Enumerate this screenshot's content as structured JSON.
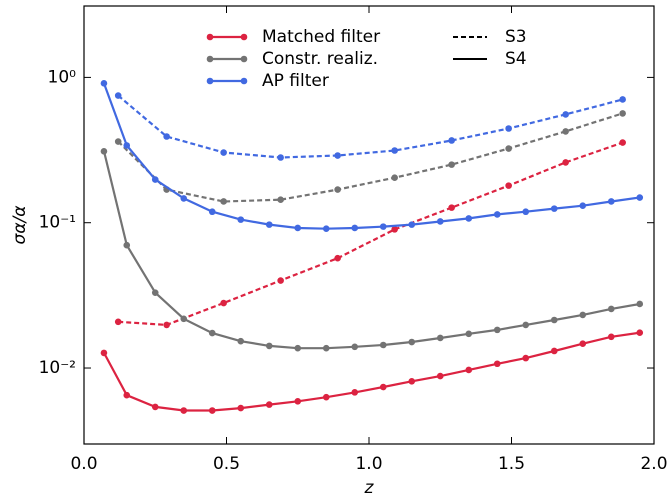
{
  "chart_data": {
    "type": "line",
    "xlabel": "z",
    "ylabel": "σα/α",
    "xlim": [
      0,
      2.0
    ],
    "ylim": [
      0.003,
      3.1
    ],
    "log_y": true,
    "xticks": [
      {
        "value": 0,
        "label": "0.0"
      },
      0.5,
      {
        "value": 1,
        "label": "1.0"
      },
      1.5,
      {
        "value": 2,
        "label": "2.0"
      }
    ],
    "yticks": [
      {
        "value": 0.01,
        "label": "10⁻²"
      },
      {
        "value": 0.1,
        "label": "10⁻¹"
      },
      {
        "value": 1,
        "label": "10⁰"
      }
    ],
    "configurations": [
      {
        "name": "S3",
        "dashed": true
      },
      {
        "name": "S4",
        "dashed": false
      }
    ],
    "methods": [
      {
        "name": "Matched filter",
        "color": "#dc2341",
        "curves": [
          {
            "x": [
              0.12,
              0.29,
              0.49,
              0.69,
              0.89,
              1.09,
              1.29,
              1.49,
              1.69,
              1.89
            ],
            "values": [
              0.0208,
              0.0198,
              0.028,
              0.04,
              0.057,
              0.09,
              0.127,
              0.18,
              0.26,
              0.356
            ]
          },
          {
            "x": [
              0.07,
              0.15,
              0.25,
              0.35,
              0.45,
              0.55,
              0.65,
              0.75,
              0.85,
              0.95,
              1.05,
              1.15,
              1.25,
              1.35,
              1.45,
              1.55,
              1.65,
              1.75,
              1.85,
              1.95
            ],
            "values": [
              0.0127,
              0.0065,
              0.0054,
              0.0051,
              0.0051,
              0.0053,
              0.0056,
              0.0059,
              0.0063,
              0.0068,
              0.0074,
              0.0081,
              0.0088,
              0.0097,
              0.0107,
              0.0117,
              0.0131,
              0.0147,
              0.0164,
              0.0175
            ]
          }
        ]
      },
      {
        "name": "Constr. realiz.",
        "color": "#737373",
        "curves": [
          {
            "x": [
              0.12,
              0.29,
              0.49,
              0.69,
              0.89,
              1.09,
              1.29,
              1.49,
              1.69,
              1.89
            ],
            "values": [
              0.362,
              0.169,
              0.14,
              0.144,
              0.169,
              0.204,
              0.251,
              0.324,
              0.425,
              0.565
            ]
          },
          {
            "x": [
              0.07,
              0.15,
              0.25,
              0.35,
              0.45,
              0.55,
              0.65,
              0.75,
              0.85,
              0.95,
              1.05,
              1.15,
              1.25,
              1.35,
              1.45,
              1.55,
              1.65,
              1.75,
              1.85,
              1.95
            ],
            "values": [
              0.31,
              0.07,
              0.033,
              0.0218,
              0.0174,
              0.0153,
              0.0142,
              0.0137,
              0.0137,
              0.014,
              0.0144,
              0.0151,
              0.0161,
              0.0172,
              0.0183,
              0.0198,
              0.0214,
              0.0232,
              0.0255,
              0.0276
            ]
          }
        ]
      },
      {
        "name": "AP filter",
        "color": "#4169e1",
        "curves": [
          {
            "x": [
              0.12,
              0.29,
              0.49,
              0.69,
              0.89,
              1.09,
              1.29,
              1.49,
              1.69,
              1.89
            ],
            "values": [
              0.75,
              0.392,
              0.304,
              0.281,
              0.29,
              0.314,
              0.368,
              0.445,
              0.556,
              0.705
            ]
          },
          {
            "x": [
              0.07,
              0.15,
              0.25,
              0.35,
              0.45,
              0.55,
              0.65,
              0.75,
              0.85,
              0.95,
              1.05,
              1.15,
              1.25,
              1.35,
              1.45,
              1.55,
              1.65,
              1.75,
              1.85,
              1.95
            ],
            "values": [
              0.91,
              0.34,
              0.198,
              0.147,
              0.119,
              0.105,
              0.097,
              0.092,
              0.091,
              0.092,
              0.094,
              0.097,
              0.102,
              0.107,
              0.114,
              0.119,
              0.125,
              0.131,
              0.14,
              0.149
            ]
          }
        ]
      }
    ]
  }
}
